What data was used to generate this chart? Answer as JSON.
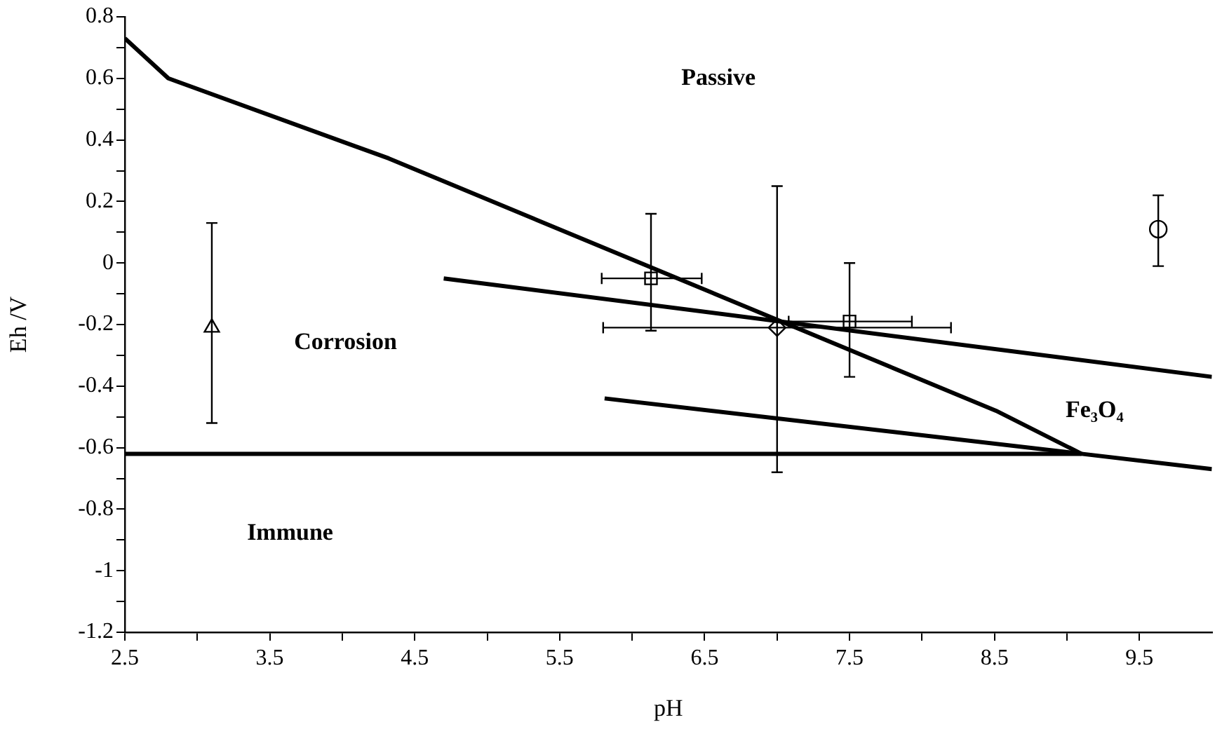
{
  "chart_data": {
    "type": "line",
    "xlabel": "pH",
    "ylabel": "Eh /V",
    "xlim": [
      2.5,
      10
    ],
    "ylim": [
      -1.2,
      0.8
    ],
    "xticks": [
      2.5,
      {
        "value": 3,
        "label": null
      },
      3.5,
      {
        "value": 4,
        "label": null
      },
      4.5,
      {
        "value": 5,
        "label": null
      },
      5.5,
      {
        "value": 6,
        "label": null
      },
      6.5,
      {
        "value": 7,
        "label": null
      },
      7.5,
      {
        "value": 8,
        "label": null
      },
      8.5,
      {
        "value": 9,
        "label": null
      },
      9.5
    ],
    "yticks": [
      -1.2,
      {
        "value": -1.1,
        "label": null
      },
      {
        "value": -1,
        "label": "-1"
      },
      {
        "value": -0.9,
        "label": null
      },
      -0.8,
      {
        "value": -0.7,
        "label": null
      },
      -0.6,
      {
        "value": -0.5,
        "label": null
      },
      -0.4,
      {
        "value": -0.3,
        "label": null
      },
      -0.2,
      {
        "value": -0.1,
        "label": null
      },
      0,
      {
        "value": 0.1,
        "label": null
      },
      0.2,
      {
        "value": 0.3,
        "label": null
      },
      0.4,
      {
        "value": 0.5,
        "label": null
      },
      0.6,
      {
        "value": 0.7,
        "label": null
      },
      0.8
    ],
    "grid": false,
    "legend": false,
    "series": [
      {
        "color": "#000000",
        "marker": "none",
        "x": [
          2.5,
          2.8,
          4.32,
          8.51,
          9.1
        ],
        "values": [
          0.73,
          0.6,
          0.34,
          -0.48,
          -0.62
        ]
      },
      {
        "color": "#000000",
        "marker": "none",
        "x": [
          4.7,
          10
        ],
        "values": [
          -0.05,
          -0.37
        ]
      },
      {
        "color": "#000000",
        "marker": "none",
        "x": [
          5.81,
          9.1,
          10
        ],
        "values": [
          -0.44,
          -0.62,
          -0.67
        ]
      },
      {
        "color": "#000000",
        "marker": "none",
        "x": [
          2.5,
          9.1
        ],
        "values": [
          -0.62,
          -0.62
        ]
      },
      {
        "type": "scatter",
        "color": "#000000",
        "marker": "triangle",
        "x": [
          3.1
        ],
        "values": [
          -0.21
        ],
        "errors": [
          [
            -0.52,
            0.13
          ]
        ]
      },
      {
        "type": "scatter",
        "color": "#000000",
        "marker": "square",
        "x": [
          6.13
        ],
        "values": [
          -0.05
        ],
        "errors": [
          [
            -0.22,
            0.16
          ]
        ],
        "xerrors": [
          [
            5.79,
            6.48
          ]
        ]
      },
      {
        "type": "scatter",
        "color": "#000000",
        "marker": "diamond",
        "x": [
          7.0
        ],
        "values": [
          -0.21
        ],
        "errors": [
          [
            -0.68,
            0.25
          ]
        ],
        "xerrors": [
          [
            5.8,
            8.2
          ]
        ]
      },
      {
        "type": "scatter",
        "color": "#000000",
        "marker": "square",
        "x": [
          7.5
        ],
        "values": [
          -0.19
        ],
        "errors": [
          [
            -0.37,
            0.0
          ]
        ],
        "xerrors": [
          [
            7.08,
            7.93
          ]
        ]
      },
      {
        "type": "scatter",
        "color": "#000000",
        "marker": "circle",
        "x": [
          9.63
        ],
        "values": [
          0.11
        ],
        "errors": [
          [
            -0.01,
            0.22
          ]
        ]
      }
    ],
    "annotations": [
      "Passive",
      "Corrosion",
      "Immune",
      "Fe₃O₄"
    ]
  }
}
